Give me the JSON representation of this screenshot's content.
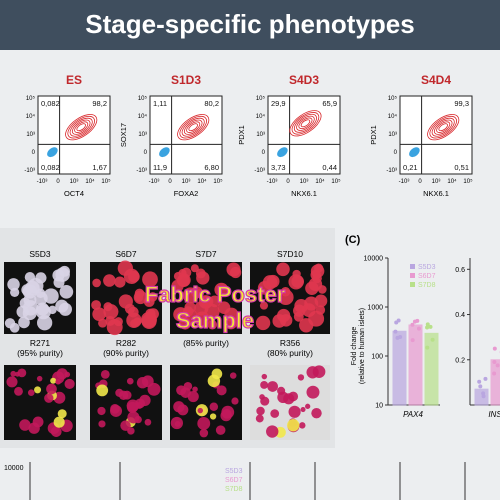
{
  "header": {
    "title": "Stage-specific phenotypes"
  },
  "flow": {
    "yticks": [
      "10⁵",
      "10⁴",
      "10³",
      "0",
      "-10³"
    ],
    "xticks": [
      "-10³",
      "0",
      "10³",
      "10⁴",
      "10⁵"
    ],
    "panels": [
      {
        "title": "ES",
        "xlabel": "OCT4",
        "q1": "0,082",
        "q2": "98,2",
        "q3": "1,67",
        "q4": "0,082"
      },
      {
        "title": "S1D3",
        "xlabel": "FOXA2",
        "ylabel": "SOX17",
        "q1": "1,11",
        "q2": "80,2",
        "q3": "6,80",
        "q4": "11,9"
      },
      {
        "title": "S4D3",
        "xlabel": "NKX6.1",
        "ylabel": "PDX1",
        "q1": "29,9",
        "q2": "65,9",
        "q3": "0,44",
        "q4": "3,73"
      },
      {
        "title": "S4D4",
        "xlabel": "NKX6.1",
        "ylabel": "PDX1",
        "q2": "99,3",
        "q3": "0,51",
        "q4": "0,21"
      }
    ]
  },
  "images": {
    "top": [
      "S5D3",
      "S6D7",
      "S7D7",
      "S7D10"
    ],
    "bottom": [
      "R271\n(95% purity)",
      "R282\n(90% purity)",
      "(85% purity)",
      "R356\n(80% purity)"
    ],
    "watermark": [
      "Fabric Poster",
      "Sample"
    ]
  },
  "panel_c": {
    "label": "(C)",
    "ylabel": "Fold change\n(relative to human islets)",
    "legend": [
      "S5D3",
      "S6D7",
      "S7D8"
    ],
    "colors": [
      "#b9a6e0",
      "#e89ad0",
      "#b8e08a"
    ],
    "charts": [
      {
        "xlabel": "PAX4",
        "scale": "log",
        "ylim": [
          10,
          10000
        ],
        "yticks": [
          10,
          100,
          1000,
          10000
        ],
        "values": [
          320,
          430,
          290
        ]
      },
      {
        "xlabel": "INS",
        "scale": "linear",
        "ylim": [
          0,
          0.65
        ],
        "yticks": [
          0.2,
          0.4,
          0.6
        ],
        "values": [
          0.07,
          0.2
        ]
      }
    ]
  },
  "bottom_row": {
    "tick": "10000",
    "legend": [
      "S5D3",
      "S6D7",
      "S7D8"
    ]
  }
}
